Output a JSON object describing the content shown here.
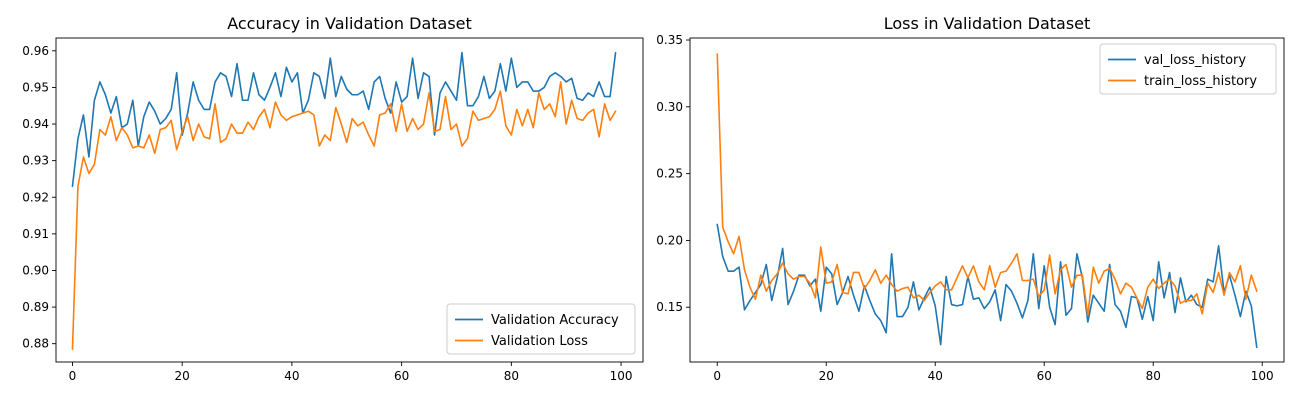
{
  "chart_data": [
    {
      "type": "line",
      "title": "Accuracy in Validation Dataset",
      "xlabel": "",
      "ylabel": "",
      "xlim": [
        -3,
        104
      ],
      "ylim": [
        0.875,
        0.9635
      ],
      "xticks": [
        0,
        20,
        40,
        60,
        80,
        100
      ],
      "yticks": [
        0.88,
        0.89,
        0.9,
        0.91,
        0.92,
        0.93,
        0.94,
        0.95,
        0.96
      ],
      "ytick_labels": [
        "0.88",
        "0.89",
        "0.90",
        "0.91",
        "0.92",
        "0.93",
        "0.94",
        "0.95",
        "0.96"
      ],
      "grid": false,
      "legend": "lower-right",
      "series": [
        {
          "name": "Validation Accuracy",
          "color": "#1f77b4",
          "values": [
            0.923,
            0.936,
            0.9425,
            0.931,
            0.9465,
            0.9515,
            0.948,
            0.943,
            0.9475,
            0.939,
            0.94,
            0.9465,
            0.934,
            0.942,
            0.946,
            0.9435,
            0.94,
            0.9415,
            0.944,
            0.954,
            0.937,
            0.943,
            0.9515,
            0.9465,
            0.944,
            0.944,
            0.9515,
            0.954,
            0.953,
            0.9475,
            0.9565,
            0.9465,
            0.9465,
            0.954,
            0.948,
            0.9465,
            0.95,
            0.954,
            0.9475,
            0.9555,
            0.9515,
            0.954,
            0.943,
            0.9465,
            0.954,
            0.953,
            0.947,
            0.958,
            0.9475,
            0.953,
            0.9495,
            0.948,
            0.948,
            0.949,
            0.944,
            0.9515,
            0.953,
            0.947,
            0.943,
            0.9515,
            0.946,
            0.9475,
            0.958,
            0.947,
            0.954,
            0.953,
            0.937,
            0.9485,
            0.9515,
            0.949,
            0.9465,
            0.9595,
            0.945,
            0.945,
            0.9475,
            0.953,
            0.947,
            0.949,
            0.9565,
            0.949,
            0.958,
            0.95,
            0.9515,
            0.9515,
            0.949,
            0.949,
            0.95,
            0.953,
            0.954,
            0.953,
            0.9515,
            0.9525,
            0.947,
            0.9465,
            0.9485,
            0.9475,
            0.9515,
            0.9475,
            0.9475,
            0.9595
          ]
        },
        {
          "name": "Validation Loss",
          "color": "#ff7f0e",
          "values": [
            0.8785,
            0.923,
            0.931,
            0.9265,
            0.929,
            0.9385,
            0.937,
            0.942,
            0.9355,
            0.939,
            0.937,
            0.9335,
            0.934,
            0.9335,
            0.937,
            0.932,
            0.9385,
            0.939,
            0.941,
            0.933,
            0.938,
            0.942,
            0.9355,
            0.94,
            0.9365,
            0.936,
            0.9455,
            0.935,
            0.936,
            0.94,
            0.9375,
            0.9375,
            0.9405,
            0.9385,
            0.942,
            0.944,
            0.939,
            0.946,
            0.9425,
            0.941,
            0.942,
            0.9425,
            0.943,
            0.9435,
            0.9425,
            0.934,
            0.937,
            0.9355,
            0.9445,
            0.94,
            0.935,
            0.9415,
            0.9395,
            0.9405,
            0.937,
            0.934,
            0.9425,
            0.943,
            0.9455,
            0.938,
            0.9455,
            0.938,
            0.9415,
            0.9385,
            0.94,
            0.9485,
            0.938,
            0.9385,
            0.9475,
            0.9385,
            0.94,
            0.934,
            0.936,
            0.9435,
            0.941,
            0.9415,
            0.942,
            0.944,
            0.949,
            0.9395,
            0.937,
            0.944,
            0.9395,
            0.944,
            0.939,
            0.9485,
            0.944,
            0.9455,
            0.942,
            0.9515,
            0.94,
            0.9465,
            0.9415,
            0.941,
            0.943,
            0.944,
            0.9365,
            0.9455,
            0.941,
            0.9435
          ]
        }
      ]
    },
    {
      "type": "line",
      "title": "Loss in Validation Dataset",
      "xlabel": "",
      "ylabel": "",
      "xlim": [
        -5,
        104
      ],
      "ylim": [
        0.109,
        0.3515
      ],
      "xticks": [
        0,
        20,
        40,
        60,
        80,
        100
      ],
      "yticks": [
        0.15,
        0.2,
        0.25,
        0.3,
        0.35
      ],
      "ytick_labels": [
        "0.15",
        "0.20",
        "0.25",
        "0.30",
        "0.35"
      ],
      "grid": false,
      "legend": "top-right",
      "series": [
        {
          "name": "val_loss_history",
          "color": "#1f77b4",
          "values": [
            0.212,
            0.188,
            0.177,
            0.177,
            0.18,
            0.148,
            0.155,
            0.161,
            0.167,
            0.182,
            0.155,
            0.172,
            0.194,
            0.152,
            0.162,
            0.174,
            0.174,
            0.166,
            0.171,
            0.147,
            0.18,
            0.175,
            0.152,
            0.161,
            0.173,
            0.159,
            0.147,
            0.166,
            0.155,
            0.145,
            0.14,
            0.131,
            0.19,
            0.143,
            0.143,
            0.15,
            0.169,
            0.148,
            0.157,
            0.165,
            0.151,
            0.122,
            0.173,
            0.152,
            0.151,
            0.152,
            0.173,
            0.156,
            0.157,
            0.149,
            0.154,
            0.163,
            0.14,
            0.167,
            0.162,
            0.153,
            0.142,
            0.155,
            0.19,
            0.149,
            0.181,
            0.15,
            0.137,
            0.184,
            0.144,
            0.149,
            0.19,
            0.172,
            0.139,
            0.159,
            0.153,
            0.147,
            0.182,
            0.152,
            0.147,
            0.135,
            0.158,
            0.157,
            0.141,
            0.158,
            0.14,
            0.184,
            0.157,
            0.176,
            0.146,
            0.172,
            0.154,
            0.159,
            0.152,
            0.15,
            0.171,
            0.169,
            0.196,
            0.161,
            0.174,
            0.159,
            0.143,
            0.162,
            0.151,
            0.12
          ]
        },
        {
          "name": "train_loss_history",
          "color": "#ff7f0e",
          "values": [
            0.3395,
            0.21,
            0.199,
            0.19,
            0.203,
            0.178,
            0.165,
            0.156,
            0.174,
            0.162,
            0.17,
            0.175,
            0.183,
            0.175,
            0.171,
            0.173,
            0.173,
            0.168,
            0.157,
            0.195,
            0.168,
            0.169,
            0.182,
            0.161,
            0.16,
            0.176,
            0.176,
            0.164,
            0.17,
            0.178,
            0.168,
            0.174,
            0.167,
            0.162,
            0.164,
            0.165,
            0.157,
            0.159,
            0.155,
            0.161,
            0.166,
            0.169,
            0.163,
            0.163,
            0.172,
            0.181,
            0.172,
            0.181,
            0.169,
            0.163,
            0.181,
            0.165,
            0.176,
            0.177,
            0.183,
            0.19,
            0.17,
            0.17,
            0.171,
            0.158,
            0.163,
            0.189,
            0.16,
            0.178,
            0.182,
            0.165,
            0.174,
            0.174,
            0.144,
            0.18,
            0.168,
            0.177,
            0.179,
            0.171,
            0.16,
            0.168,
            0.165,
            0.157,
            0.149,
            0.165,
            0.171,
            0.164,
            0.168,
            0.171,
            0.166,
            0.153,
            0.155,
            0.155,
            0.16,
            0.145,
            0.168,
            0.161,
            0.176,
            0.159,
            0.176,
            0.169,
            0.181,
            0.156,
            0.174,
            0.162
          ]
        }
      ]
    }
  ]
}
